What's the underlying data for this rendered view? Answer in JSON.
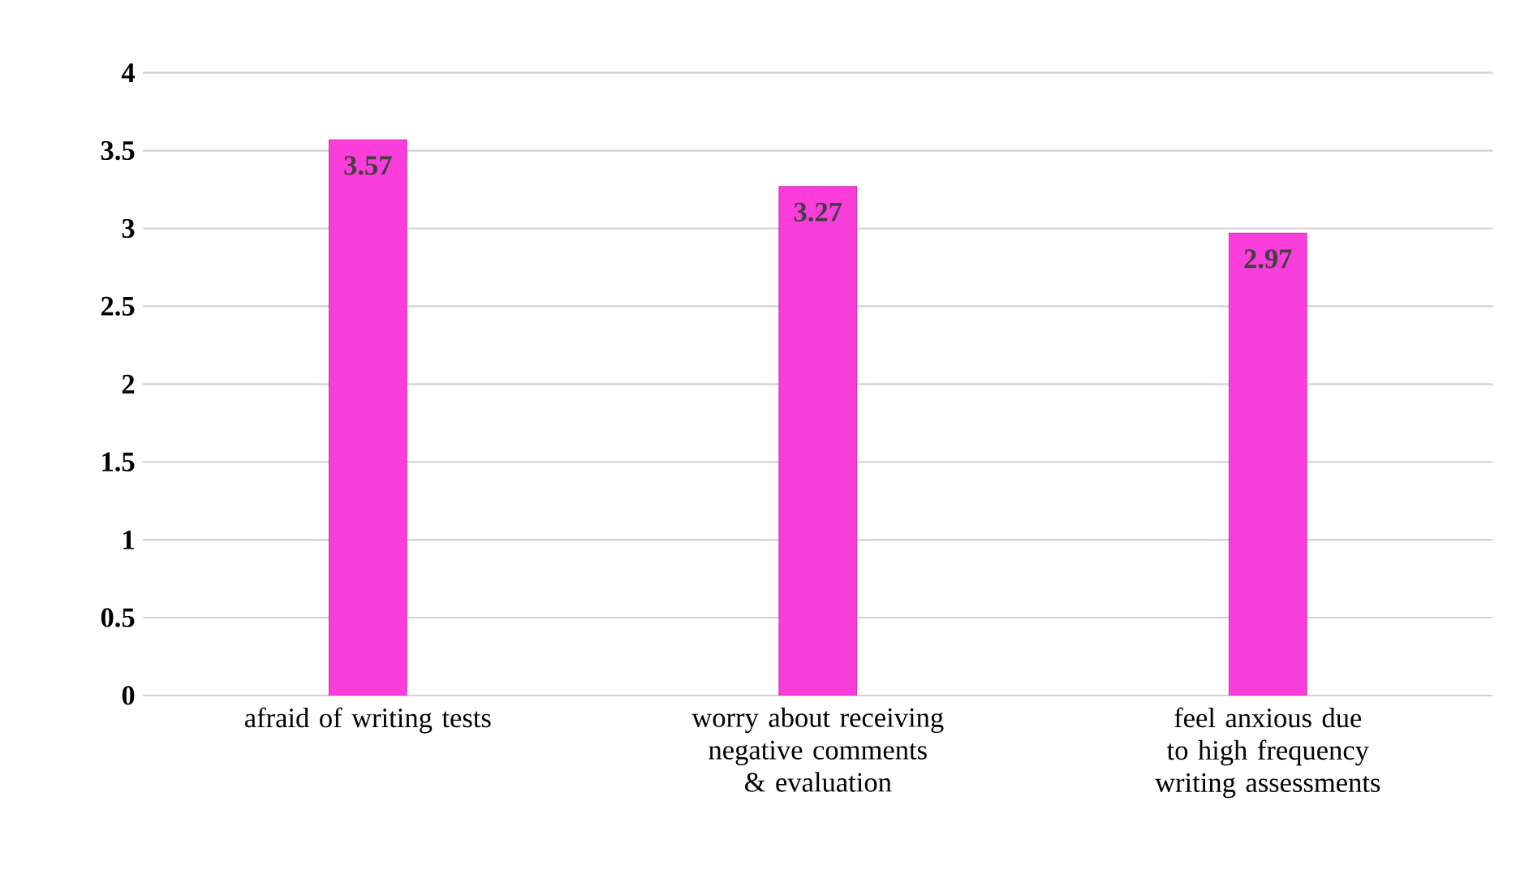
{
  "chart_data": {
    "type": "bar",
    "categories": [
      "afraid of writing tests",
      "worry about receiving negative comments & evaluation",
      "feel anxious due to high frequency writing assessments"
    ],
    "values": [
      3.57,
      3.27,
      2.97
    ],
    "color": "#fb3ddc",
    "ylim": [
      0,
      4
    ],
    "yticks": [
      0,
      0.5,
      1,
      1.5,
      2,
      2.5,
      3,
      3.5,
      4
    ],
    "grid": "y",
    "data_labels": true
  }
}
